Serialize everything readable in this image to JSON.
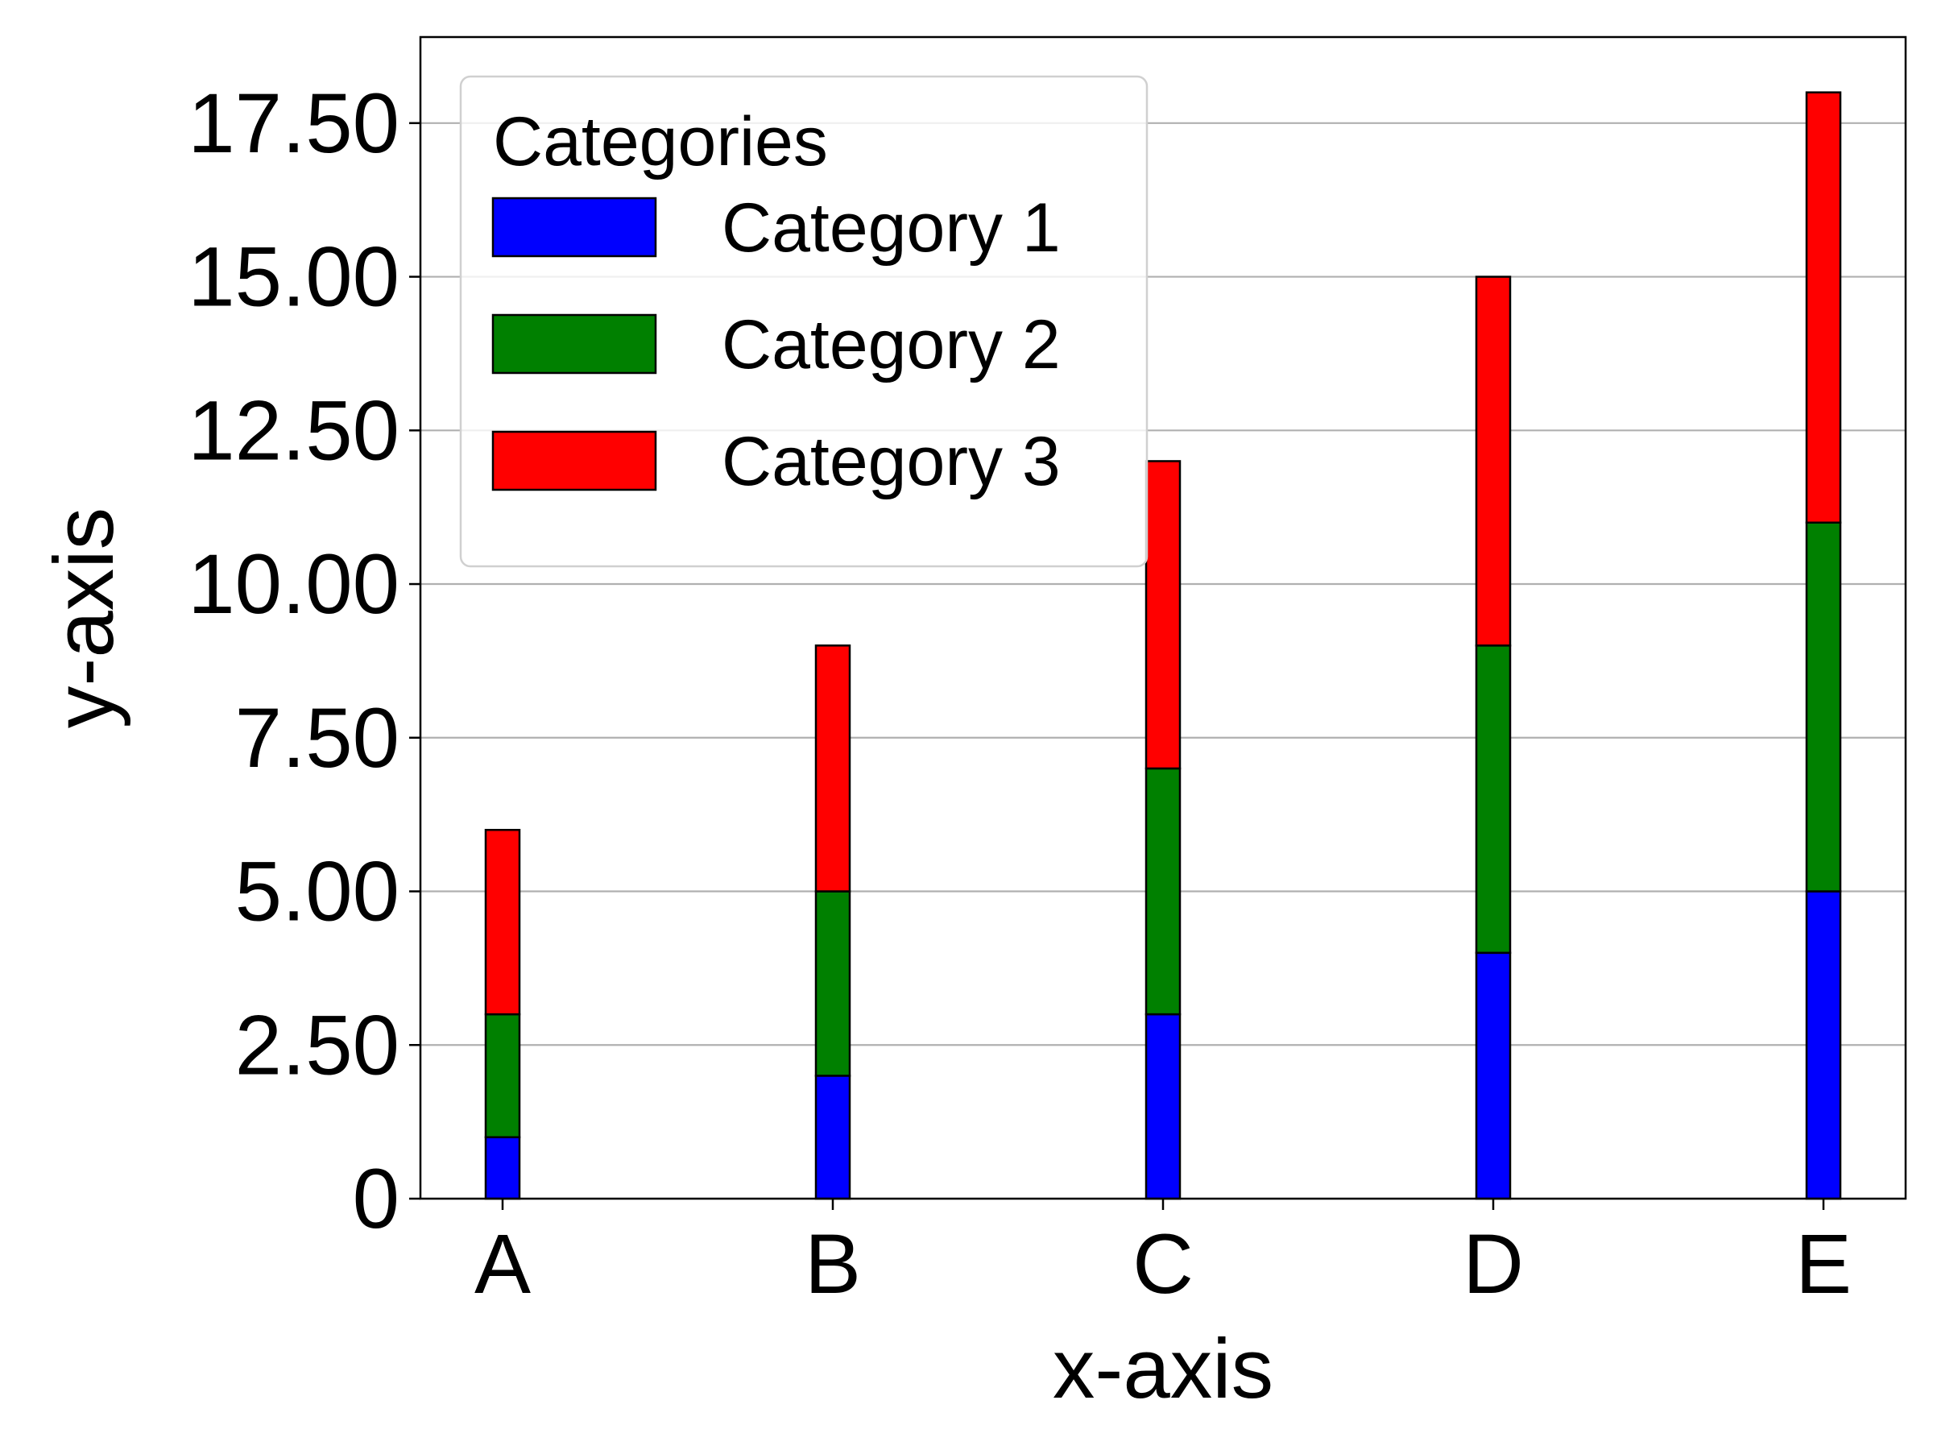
{
  "chart_data": {
    "type": "bar",
    "stacked": true,
    "title": "",
    "xlabel": "x-axis",
    "ylabel": "y-axis",
    "categories": [
      "A",
      "B",
      "C",
      "D",
      "E"
    ],
    "series": [
      {
        "name": "Category 1",
        "color": "#0000ff",
        "values": [
          1,
          2,
          3,
          4,
          5
        ]
      },
      {
        "name": "Category 2",
        "color": "#008000",
        "values": [
          2,
          3,
          4,
          5,
          6
        ]
      },
      {
        "name": "Category 3",
        "color": "#ff0000",
        "values": [
          3,
          4,
          5,
          6,
          7
        ]
      }
    ],
    "ylim": [
      0,
      18.9
    ],
    "yticks": [
      0,
      2.5,
      5,
      7.5,
      10,
      12.5,
      15,
      17.5
    ],
    "ytick_labels": [
      "0",
      "2.50",
      "5.00",
      "7.50",
      "10.00",
      "12.50",
      "15.00",
      "17.50"
    ],
    "grid": {
      "y": true,
      "x": false,
      "color": "#b0b0b0"
    },
    "legend": {
      "title": "Categories",
      "placement": "upper-left"
    },
    "bar_edge_color": "#000000"
  }
}
